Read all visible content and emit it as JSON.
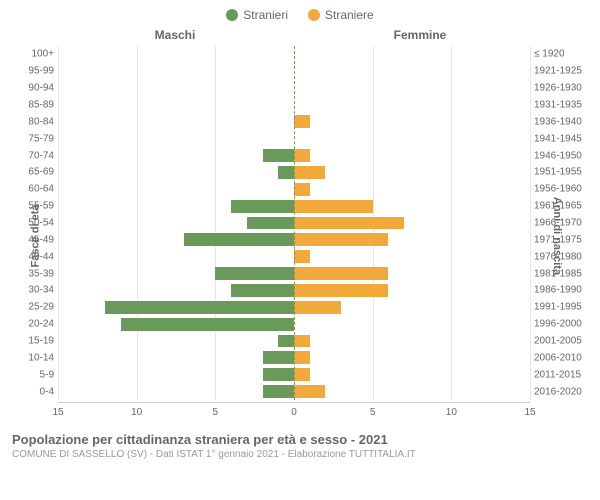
{
  "chart": {
    "type": "population-pyramid",
    "legend": {
      "male": {
        "label": "Stranieri",
        "color": "#6a9a5b"
      },
      "female": {
        "label": "Straniere",
        "color": "#f0a93a"
      }
    },
    "column_headers": {
      "left": "Maschi",
      "right": "Femmine"
    },
    "y_axis_left_title": "Fasce di età",
    "y_axis_right_title": "Anni di nascita",
    "x_axis": {
      "max": 15,
      "ticks_left": [
        15,
        10,
        5,
        0
      ],
      "ticks_right": [
        0,
        5,
        10,
        15
      ],
      "grid_color": "#e6e6e6"
    },
    "bar_colors": {
      "male": "#6a9a5b",
      "female": "#f0a93a"
    },
    "background_color": "#ffffff",
    "center_line_color": "#9a8a4a",
    "rows": [
      {
        "age": "100+",
        "birth": "≤ 1920",
        "male": 0,
        "female": 0
      },
      {
        "age": "95-99",
        "birth": "1921-1925",
        "male": 0,
        "female": 0
      },
      {
        "age": "90-94",
        "birth": "1926-1930",
        "male": 0,
        "female": 0
      },
      {
        "age": "85-89",
        "birth": "1931-1935",
        "male": 0,
        "female": 0
      },
      {
        "age": "80-84",
        "birth": "1936-1940",
        "male": 0,
        "female": 1
      },
      {
        "age": "75-79",
        "birth": "1941-1945",
        "male": 0,
        "female": 0
      },
      {
        "age": "70-74",
        "birth": "1946-1950",
        "male": 2,
        "female": 1
      },
      {
        "age": "65-69",
        "birth": "1951-1955",
        "male": 1,
        "female": 2
      },
      {
        "age": "60-64",
        "birth": "1956-1960",
        "male": 0,
        "female": 1
      },
      {
        "age": "55-59",
        "birth": "1961-1965",
        "male": 4,
        "female": 5
      },
      {
        "age": "50-54",
        "birth": "1966-1970",
        "male": 3,
        "female": 7
      },
      {
        "age": "45-49",
        "birth": "1971-1975",
        "male": 7,
        "female": 6
      },
      {
        "age": "40-44",
        "birth": "1976-1980",
        "male": 0,
        "female": 1
      },
      {
        "age": "35-39",
        "birth": "1981-1985",
        "male": 5,
        "female": 6
      },
      {
        "age": "30-34",
        "birth": "1986-1990",
        "male": 4,
        "female": 6
      },
      {
        "age": "25-29",
        "birth": "1991-1995",
        "male": 12,
        "female": 3
      },
      {
        "age": "20-24",
        "birth": "1996-2000",
        "male": 11,
        "female": 0
      },
      {
        "age": "15-19",
        "birth": "2001-2005",
        "male": 1,
        "female": 1
      },
      {
        "age": "10-14",
        "birth": "2006-2010",
        "male": 2,
        "female": 1
      },
      {
        "age": "5-9",
        "birth": "2011-2015",
        "male": 2,
        "female": 1
      },
      {
        "age": "0-4",
        "birth": "2016-2020",
        "male": 2,
        "female": 2
      }
    ]
  },
  "footer": {
    "title": "Popolazione per cittadinanza straniera per età e sesso - 2021",
    "subtitle": "COMUNE DI SASSELLO (SV) - Dati ISTAT 1° gennaio 2021 - Elaborazione TUTTITALIA.IT"
  }
}
